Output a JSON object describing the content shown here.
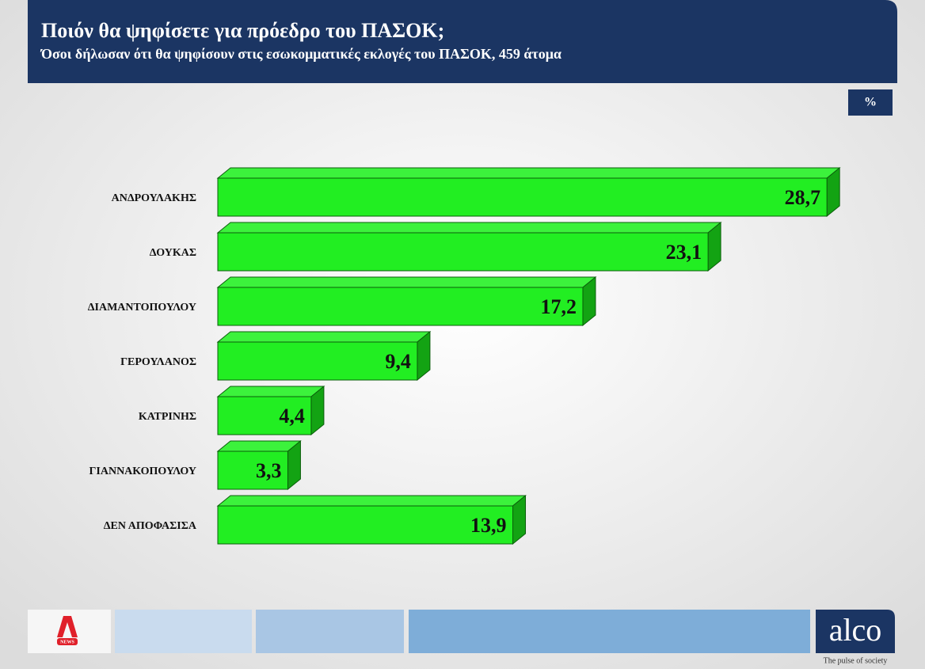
{
  "chart_data": {
    "type": "bar3d",
    "title": "Ποιόν θα ψηφίσετε για πρόεδρο του ΠΑΣΟΚ;",
    "subtitle": "Όσοι δήλωσαν ότι θα ψηφίσουν στις εσωκομματικές εκλογές του ΠΑΣΟΚ, 459 άτομα",
    "unit_label": "%",
    "categories": [
      "ΑΝΔΡΟΥΛΑΚΗΣ",
      "ΔΟΥΚΑΣ",
      "ΔΙΑΜΑΝΤΟΠΟΥΛΟΥ",
      "ΓΕΡΟΥΛΑΝΟΣ",
      "ΚΑΤΡΙΝΗΣ",
      "ΓΙΑΝΝΑΚΟΠΟΥΛΟΥ",
      "ΔΕΝ ΑΠΟΦΑΣΙΣΑ"
    ],
    "values": [
      28.7,
      23.1,
      17.2,
      9.4,
      4.4,
      3.3,
      13.9
    ],
    "value_labels": [
      "28,7",
      "23,1",
      "17,2",
      "9,4",
      "4,4",
      "3,3",
      "13,9"
    ],
    "color": "#22ee22"
  },
  "branding": {
    "channel": "NEWS",
    "logo": "alco",
    "slogan": "The pulse of society"
  }
}
